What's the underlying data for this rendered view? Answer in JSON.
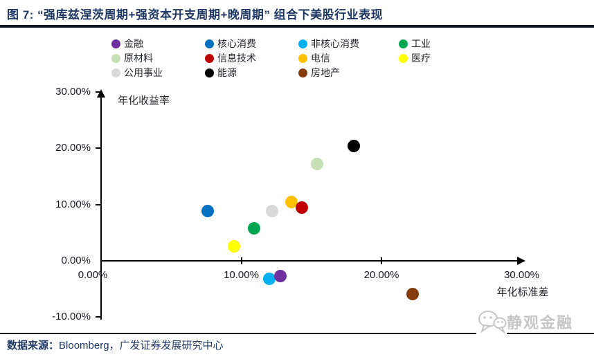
{
  "title": {
    "text": "图 7: “强库兹涅茨周期+强资本开支周期+晚周期” 组合下美股行业表现"
  },
  "footer": {
    "source_label": "数据来源：",
    "source_text": "Bloomberg，广发证券发展研究中心"
  },
  "watermark": {
    "text": "静观金融",
    "icon": "wechat-bubbles-icon"
  },
  "colors": {
    "title_navy": "#1F3864",
    "axis_black": "#000000",
    "watermark_gray": "#c6c6c6"
  },
  "chart_data": {
    "type": "scatter",
    "title": "",
    "grid": false,
    "legend_position": "top",
    "x_axis": {
      "label": "年化标准差",
      "range": [
        0,
        30
      ],
      "tick_values": [
        0,
        10,
        20,
        30
      ],
      "tick_labels": [
        "0.00%",
        "10.00%",
        "20.00%",
        "30.00%"
      ]
    },
    "y_axis": {
      "label": "年化收益率",
      "range": [
        -10,
        30
      ],
      "tick_values": [
        30,
        20,
        10,
        0,
        -10
      ],
      "tick_labels": [
        "30.00%",
        "20.00%",
        "10.00%",
        "0.00%",
        "-10.00%"
      ]
    },
    "series": [
      {
        "name": "金融",
        "color": "#7030A0",
        "x": 12.8,
        "y": -2.7,
        "z": 2
      },
      {
        "name": "核心消费",
        "color": "#0070C0",
        "x": 7.6,
        "y": 8.9
      },
      {
        "name": "非核心消费",
        "color": "#00B0F0",
        "x": 12.0,
        "y": -3.2
      },
      {
        "name": "工业",
        "color": "#00A651",
        "x": 10.9,
        "y": 5.8
      },
      {
        "name": "原材料",
        "color": "#C6E0B4",
        "x": 15.4,
        "y": 17.2
      },
      {
        "name": "信息技术",
        "color": "#C00000",
        "x": 14.3,
        "y": 9.5,
        "z": 2
      },
      {
        "name": "电信",
        "color": "#FFC000",
        "x": 13.6,
        "y": 10.4
      },
      {
        "name": "医疗",
        "color": "#FFFF00",
        "x": 9.5,
        "y": 2.6
      },
      {
        "name": "公用事业",
        "color": "#D9D9D9",
        "x": 12.2,
        "y": 8.9
      },
      {
        "name": "能源",
        "color": "#000000",
        "x": 18.0,
        "y": 20.4
      },
      {
        "name": "房地产",
        "color": "#843C0C",
        "x": 22.2,
        "y": -5.9
      }
    ]
  }
}
